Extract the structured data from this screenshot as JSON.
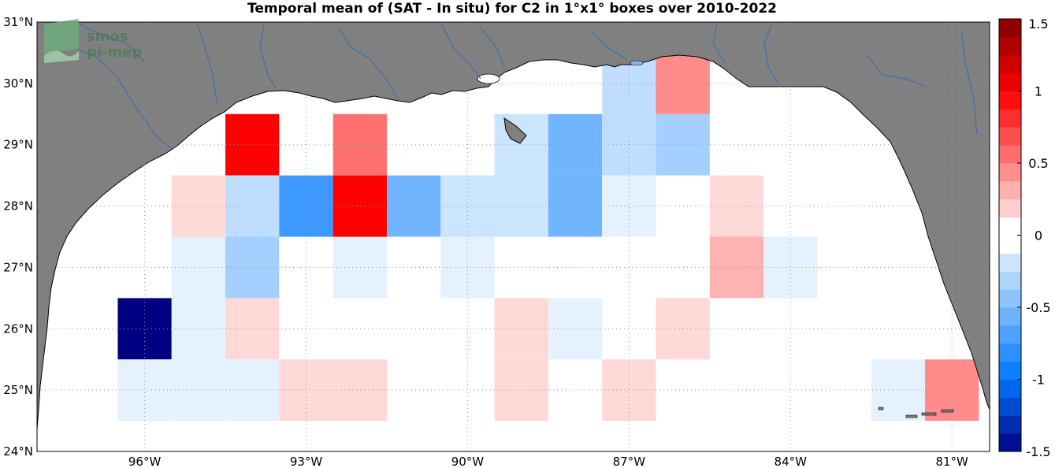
{
  "title": "Temporal mean of (SAT - In situ) for C2 in 1°x1° boxes over 2010-2022",
  "logo": {
    "line1": "smos",
    "line2": "pi-mep"
  },
  "map": {
    "lon_range": [
      -98,
      -80.3
    ],
    "lat_range": [
      24,
      31
    ],
    "land_color": "#808080",
    "ocean_color": "#ffffff",
    "river_color": "#3b6fb0",
    "lon_ticks": [
      {
        "value": -96,
        "label": "96°W"
      },
      {
        "value": -93,
        "label": "93°W"
      },
      {
        "value": -90,
        "label": "90°W"
      },
      {
        "value": -87,
        "label": "87°W"
      },
      {
        "value": -84,
        "label": "84°W"
      },
      {
        "value": -81,
        "label": "81°W"
      }
    ],
    "lat_ticks": [
      {
        "value": 24,
        "label": "24°N"
      },
      {
        "value": 25,
        "label": "25°N"
      },
      {
        "value": 26,
        "label": "26°N"
      },
      {
        "value": 27,
        "label": "27°N"
      },
      {
        "value": 28,
        "label": "28°N"
      },
      {
        "value": 29,
        "label": "29°N"
      },
      {
        "value": 30,
        "label": "30°N"
      },
      {
        "value": 31,
        "label": "31°N"
      }
    ],
    "grid": "dotted"
  },
  "colorbar": {
    "min": -1.5,
    "max": 1.5,
    "step": 0.125,
    "tick_labels": [
      {
        "value": 1.5,
        "label": "1.5"
      },
      {
        "value": 1,
        "label": "1"
      },
      {
        "value": 0.5,
        "label": "0.5"
      },
      {
        "value": 0,
        "label": "0"
      },
      {
        "value": -0.5,
        "label": "-0.5"
      },
      {
        "value": -1,
        "label": "-1"
      },
      {
        "value": -1.5,
        "label": "-1.5"
      }
    ]
  },
  "boxes": [
    {
      "lon": -94,
      "lat": 29,
      "value": 1.0
    },
    {
      "lon": -92,
      "lat": 29,
      "value": 0.55
    },
    {
      "lon": -89,
      "lat": 29,
      "value": -0.2
    },
    {
      "lon": -88,
      "lat": 29,
      "value": -0.55
    },
    {
      "lon": -87,
      "lat": 29,
      "value": -0.25
    },
    {
      "lon": -86,
      "lat": 29,
      "value": -0.35
    },
    {
      "lon": -87,
      "lat": 30,
      "value": -0.25
    },
    {
      "lon": -86,
      "lat": 30,
      "value": 0.45
    },
    {
      "lon": -95,
      "lat": 28,
      "value": 0.15
    },
    {
      "lon": -94,
      "lat": 28,
      "value": -0.25
    },
    {
      "lon": -93,
      "lat": 28,
      "value": -0.75
    },
    {
      "lon": -92,
      "lat": 28,
      "value": 1.0
    },
    {
      "lon": -91,
      "lat": 28,
      "value": -0.55
    },
    {
      "lon": -90,
      "lat": 28,
      "value": -0.2
    },
    {
      "lon": -89,
      "lat": 28,
      "value": -0.2
    },
    {
      "lon": -88,
      "lat": 28,
      "value": -0.55
    },
    {
      "lon": -87,
      "lat": 28,
      "value": -0.1
    },
    {
      "lon": -85,
      "lat": 28,
      "value": 0.15
    },
    {
      "lon": -95,
      "lat": 27,
      "value": -0.1
    },
    {
      "lon": -94,
      "lat": 27,
      "value": -0.35
    },
    {
      "lon": -92,
      "lat": 27,
      "value": -0.1
    },
    {
      "lon": -90,
      "lat": 27,
      "value": -0.1
    },
    {
      "lon": -85,
      "lat": 27,
      "value": 0.3
    },
    {
      "lon": -84,
      "lat": 27,
      "value": -0.1
    },
    {
      "lon": -96,
      "lat": 26,
      "value": -1.5
    },
    {
      "lon": -95,
      "lat": 26,
      "value": -0.1
    },
    {
      "lon": -94,
      "lat": 26,
      "value": 0.15
    },
    {
      "lon": -89,
      "lat": 26,
      "value": 0.15
    },
    {
      "lon": -88,
      "lat": 26,
      "value": -0.1
    },
    {
      "lon": -86,
      "lat": 26,
      "value": 0.15
    },
    {
      "lon": -96,
      "lat": 25,
      "value": -0.1
    },
    {
      "lon": -95,
      "lat": 25,
      "value": -0.1
    },
    {
      "lon": -94,
      "lat": 25,
      "value": -0.1
    },
    {
      "lon": -93,
      "lat": 25,
      "value": 0.15
    },
    {
      "lon": -92,
      "lat": 25,
      "value": 0.15
    },
    {
      "lon": -89,
      "lat": 25,
      "value": 0.15
    },
    {
      "lon": -87,
      "lat": 25,
      "value": 0.15
    },
    {
      "lon": -82,
      "lat": 25,
      "value": -0.1
    },
    {
      "lon": -81,
      "lat": 25,
      "value": 0.45
    }
  ]
}
